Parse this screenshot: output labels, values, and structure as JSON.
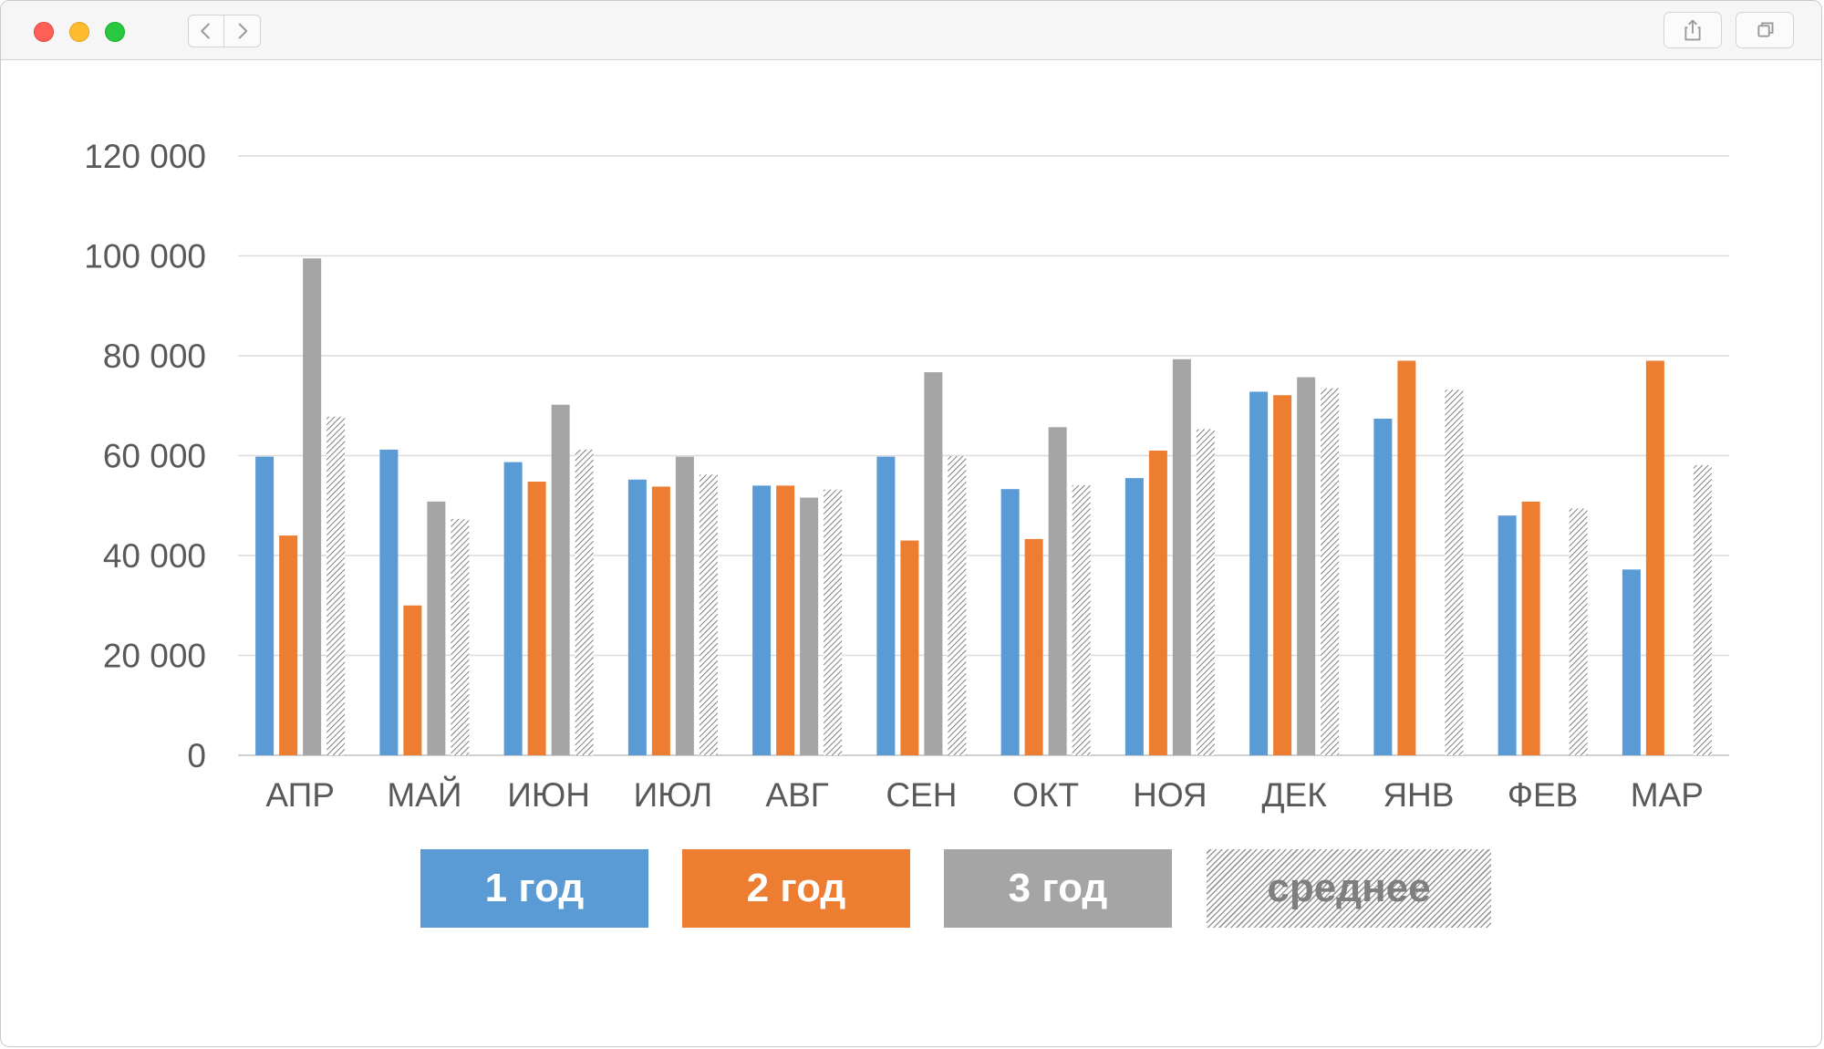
{
  "window": {
    "controls": [
      "close-icon",
      "minimize-icon",
      "zoom-icon"
    ],
    "toolbar_icons": [
      "chevron-left-icon",
      "chevron-right-icon",
      "share-icon",
      "tabs-icon"
    ]
  },
  "chart_data": {
    "type": "bar",
    "title": "",
    "xlabel": "",
    "ylabel": "",
    "ylim": [
      0,
      120000
    ],
    "yticks": [
      0,
      20000,
      40000,
      60000,
      80000,
      100000,
      120000
    ],
    "ytick_labels": [
      "0",
      "20 000",
      "40 000",
      "60 000",
      "80 000",
      "100 000",
      "120 000"
    ],
    "grid": true,
    "legend_position": "bottom",
    "categories": [
      "АПР",
      "МАЙ",
      "ИЮН",
      "ИЮЛ",
      "АВГ",
      "СЕН",
      "ОКТ",
      "НОЯ",
      "ДЕК",
      "ЯНВ",
      "ФЕВ",
      "МАР"
    ],
    "series": [
      {
        "name": "1 год",
        "color": "#5b9bd5",
        "pattern": "solid",
        "values": [
          59800,
          61200,
          58700,
          55200,
          54000,
          59800,
          53300,
          55500,
          72800,
          67400,
          48000,
          37200
        ]
      },
      {
        "name": "2 год",
        "color": "#ed7d31",
        "pattern": "solid",
        "values": [
          44000,
          30000,
          54800,
          53800,
          54000,
          43000,
          43300,
          61000,
          72100,
          79000,
          50800,
          79000
        ]
      },
      {
        "name": "3 год",
        "color": "#a5a5a5",
        "pattern": "solid",
        "values": [
          99500,
          50800,
          70200,
          59800,
          51600,
          76700,
          65700,
          79300,
          75700,
          null,
          null,
          null
        ]
      },
      {
        "name": "среднее",
        "color": "#7f7f7f",
        "pattern": "hatched",
        "values": [
          67800,
          47300,
          61200,
          56200,
          53200,
          59900,
          54100,
          65300,
          73500,
          73200,
          49400,
          58100
        ]
      }
    ]
  }
}
